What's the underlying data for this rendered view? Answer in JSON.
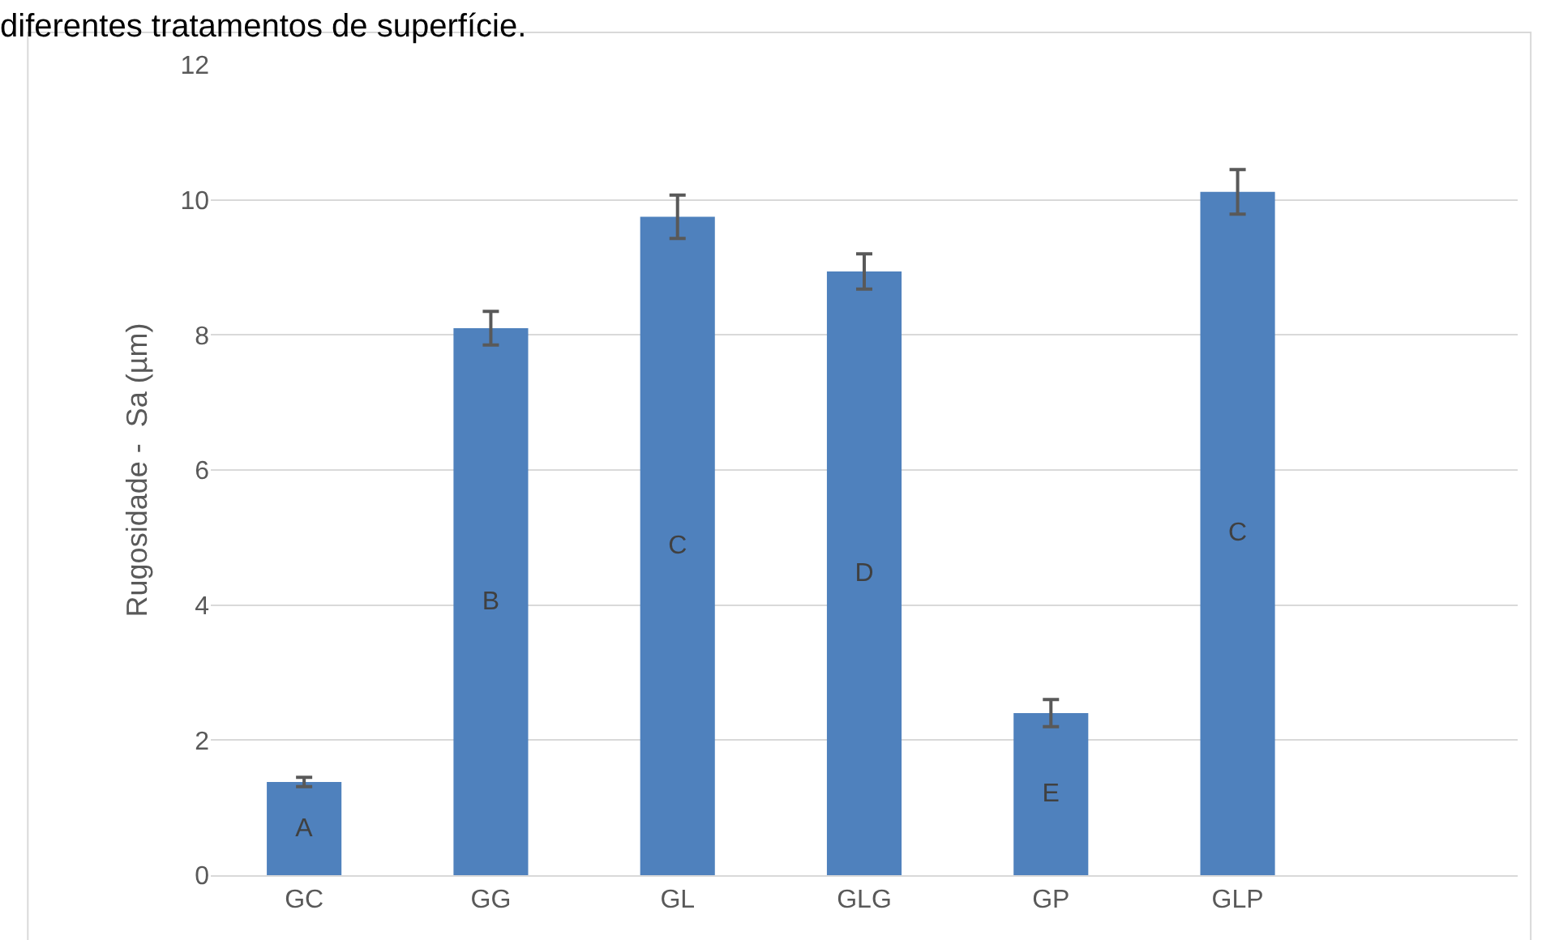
{
  "chart_data": {
    "type": "bar",
    "title": "diferentes tratamentos de superfície.",
    "ylabel": "Rugosidade -  Sa (µm)",
    "categories": [
      "GC",
      "GG",
      "GL",
      "GLG",
      "GP",
      "GLP"
    ],
    "values": [
      1.38,
      8.1,
      9.75,
      8.94,
      2.4,
      10.12
    ],
    "errors": [
      0.07,
      0.25,
      0.32,
      0.26,
      0.2,
      0.33
    ],
    "color": "#4f81bd",
    "ylim": [
      0,
      12
    ],
    "yticks": [
      0,
      2,
      4,
      6,
      8,
      10,
      12
    ],
    "grid": "y",
    "value_labels": [
      "A",
      "B",
      "C",
      "D",
      "E",
      "C"
    ]
  }
}
